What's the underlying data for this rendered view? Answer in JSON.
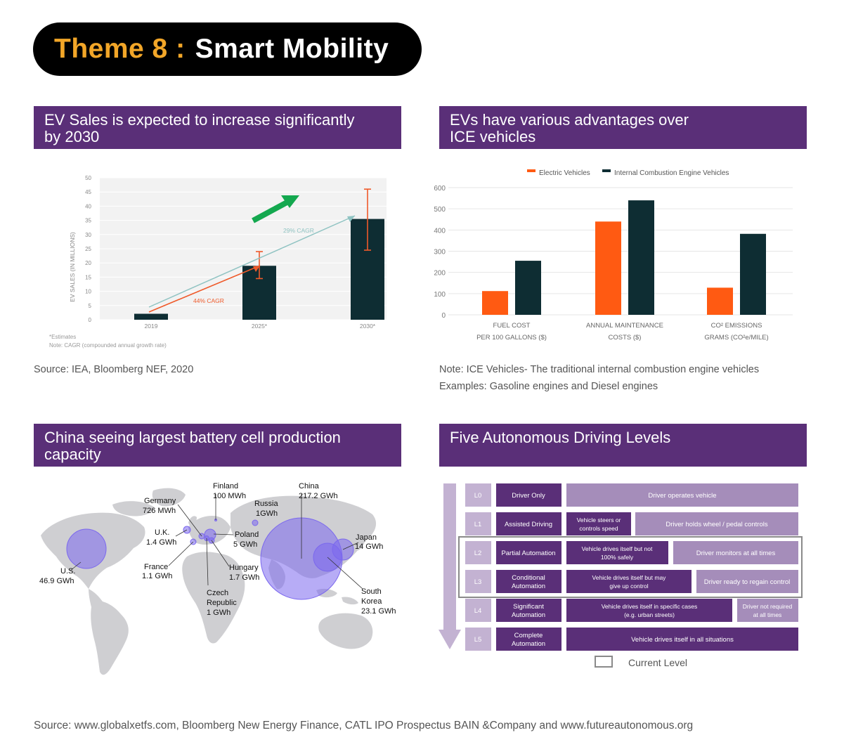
{
  "theme": {
    "number": "Theme 8 :",
    "title": "Smart Mobility"
  },
  "sections": {
    "ev_sales": {
      "title_line1": "EV Sales is expected to increase significantly",
      "title_line2": "by 2030",
      "source": "Source: IEA, Bloomberg NEF, 2020"
    },
    "ev_advantages": {
      "title_line1": "EVs have various advantages over",
      "title_line2": "ICE vehicles",
      "note_line1": "Note: ICE Vehicles- The traditional internal combustion engine vehicles",
      "note_line2": "Examples: Gasoline engines and Diesel engines"
    },
    "battery": {
      "title_line1": "China seeing largest battery cell production",
      "title_line2": "capacity"
    },
    "autonomy": {
      "title_line1": "Five Autonomous Driving Levels"
    }
  },
  "chart_data": [
    {
      "type": "bar",
      "ylabel": "EV SALES (IN MILLIONS)",
      "ylim": [
        0,
        50
      ],
      "yticks": [
        "0",
        "5",
        "10",
        "15",
        "20",
        "25",
        "30",
        "35",
        "40",
        "45",
        "50"
      ],
      "categories": [
        "2019",
        "2025*",
        "2030*"
      ],
      "values": [
        2.1,
        19,
        35.5
      ],
      "error_bars": [
        null,
        [
          14.5,
          24
        ],
        [
          24.5,
          46
        ]
      ],
      "bar_color": "#0e2d33",
      "annotations": {
        "cagr_44": "44% CAGR",
        "cagr_29": "29% CAGR"
      },
      "footnote_line1": "*Estimates",
      "footnote_line2": "Note: CAGR (compounded annual growth rate)",
      "colors": {
        "cagr_44": "#ef5a2a",
        "cagr_29": "#8fc3c2",
        "arrow": "#14a84f"
      }
    },
    {
      "type": "bar",
      "ylim": [
        0,
        600
      ],
      "yticks": [
        "0",
        "100",
        "200",
        "300",
        "400",
        "500",
        "600"
      ],
      "categories": [
        {
          "line1": "FUEL COST",
          "line2": "PER 100 GALLONS ($)"
        },
        {
          "line1": "ANNUAL MAINTENANCE",
          "line2": "COSTS ($)"
        },
        {
          "line1": "CO² EMISSIONS",
          "line2": "GRAMS (CO²e/MILE)"
        }
      ],
      "series": [
        {
          "name": "Electric Vehicles",
          "color": "#ff5a12",
          "values": [
            112,
            440,
            128
          ]
        },
        {
          "name": "Internal Combustion Engine Vehicles",
          "color": "#0e2d33",
          "values": [
            255,
            540,
            382
          ]
        }
      ]
    }
  ],
  "map": {
    "bubble_color": "#7b68ee",
    "land_color": "#cfcfd2",
    "labels": {
      "finland": {
        "name": "Finland",
        "value": "100 MWh"
      },
      "china": {
        "name": "China",
        "value": "217.2 GWh"
      },
      "germany": {
        "name": "Germany",
        "value": "726 MWh"
      },
      "russia": {
        "name": "Russia",
        "value": "1GWh"
      },
      "uk": {
        "name": "U.K.",
        "value": "1.4 GWh"
      },
      "poland": {
        "name": "Poland",
        "value": "5 GWh"
      },
      "japan": {
        "name": "Japan",
        "value": "14 GWh"
      },
      "us": {
        "name": "U.S.",
        "value": "46.9 GWh"
      },
      "france": {
        "name": "France",
        "value": "1.1 GWh"
      },
      "hungary": {
        "name": "Hungary",
        "value": "1.7 GWh"
      },
      "czech": {
        "name1": "Czech",
        "name2": "Republic",
        "value": "1 GWh"
      },
      "southkorea": {
        "name1": "South",
        "name2": "Korea",
        "value": "23.1 GWh"
      }
    }
  },
  "levels": {
    "legend": "Current Level",
    "rows": [
      {
        "id": "L0",
        "name": "Driver Only",
        "desc": "Driver operates vehicle"
      },
      {
        "id": "L1",
        "name": "Assisted Driving",
        "mid1": "Vehicle steers or",
        "mid2": "controls speed",
        "right": "Driver holds wheel / pedal controls"
      },
      {
        "id": "L2",
        "name": "Partial Automation",
        "mid1": "Vehicle drives itself but not",
        "mid2": "100% safely",
        "right": "Driver monitors at all times"
      },
      {
        "id": "L3",
        "name1": "Conditional",
        "name2": "Automation",
        "mid1": "Vehicle drives itself but may",
        "mid2": "give up control",
        "right": "Driver ready to regain control"
      },
      {
        "id": "L4",
        "name1": "Significant",
        "name2": "Automation",
        "mid1": "Vehicle drives itself in specific cases",
        "mid2": "(e.g. urban streets)",
        "right1": "Driver not required",
        "right2": "at all times"
      },
      {
        "id": "L5",
        "name1": "Complete",
        "name2": "Automation",
        "desc": "Vehicle drives itself in all situations"
      }
    ],
    "colors": {
      "dark": "#5a2f78",
      "light": "#a58dba",
      "id": "#c3b2d2",
      "arrow": "#c3b2d2"
    }
  },
  "footer": "Source: www.globalxetfs.com, Bloomberg New Energy Finance, CATL IPO Prospectus  BAIN &Company and www.futureautonomous.org"
}
